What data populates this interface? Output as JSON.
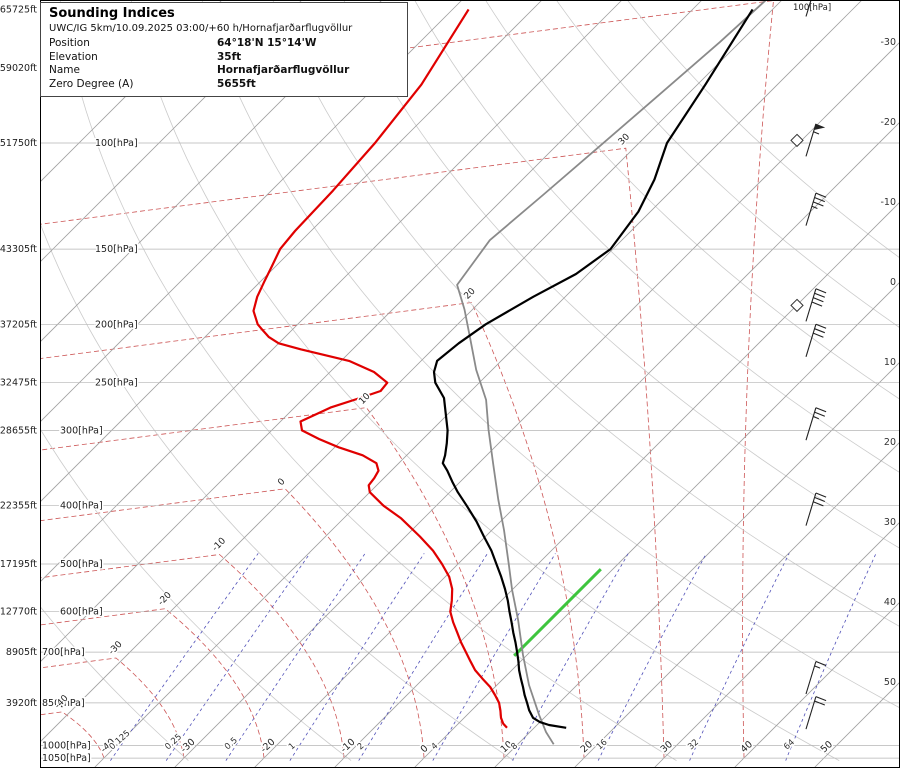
{
  "header": {
    "title": "Sounding Indices",
    "subtitle": "UWC/IG 5km/10.09.2025 03:00/+60 h/Hornafjarðarflugvöllur",
    "rows": [
      {
        "label": "Position",
        "value": "64°18'N 15°14'W"
      },
      {
        "label": "Elevation",
        "value": "35ft"
      },
      {
        "label": "Name",
        "value": "Hornafjarðarflugvöllur"
      },
      {
        "label": "Zero Degree (A)",
        "value": "5655ft"
      }
    ]
  },
  "axes": {
    "top_right_label": "100[hPa]",
    "pressure_labels": [
      {
        "p": 100,
        "x": 95,
        "text": "100[hPa]"
      },
      {
        "p": 150,
        "x": 95,
        "text": "150[hPa]"
      },
      {
        "p": 200,
        "x": 95,
        "text": "200[hPa]"
      },
      {
        "p": 250,
        "x": 95,
        "text": "250[hPa]"
      },
      {
        "p": 300,
        "x": 60,
        "text": "300[hPa]"
      },
      {
        "p": 400,
        "x": 60,
        "text": "400[hPa]"
      },
      {
        "p": 500,
        "x": 60,
        "text": "500[hPa]"
      },
      {
        "p": 600,
        "x": 60,
        "text": "600[hPa]"
      },
      {
        "p": 700,
        "x": 42,
        "text": "700[hPa]"
      },
      {
        "p": 850,
        "x": 42,
        "text": "850[hPa]"
      },
      {
        "p": 1000,
        "x": 42,
        "text": "1000[hPa]"
      },
      {
        "p": 1050,
        "x": 42,
        "text": "1050[hPa]"
      }
    ],
    "altitude_labels": [
      {
        "p": 60,
        "text": "65725ft"
      },
      {
        "p": 75,
        "text": "59020ft"
      },
      {
        "p": 100,
        "text": "51750ft"
      },
      {
        "p": 150,
        "text": "43305ft"
      },
      {
        "p": 200,
        "text": "37205ft"
      },
      {
        "p": 250,
        "text": "32475ft"
      },
      {
        "p": 300,
        "text": "28655ft"
      },
      {
        "p": 400,
        "text": "22355ft"
      },
      {
        "p": 500,
        "text": "17195ft"
      },
      {
        "p": 600,
        "text": "12770ft"
      },
      {
        "p": 700,
        "text": "8905ft"
      },
      {
        "p": 850,
        "text": "3920ft"
      }
    ],
    "right_temp_labels": [
      -30,
      -20,
      -10,
      0,
      10,
      20,
      30,
      40,
      50
    ],
    "bottom_temp_labels": [
      -40,
      -30,
      -20,
      -10,
      0,
      10,
      20,
      30,
      40,
      50
    ],
    "mixing_ratio_labels": [
      0.125,
      0.25,
      0.5,
      1,
      2,
      4,
      8,
      16,
      32,
      64
    ]
  },
  "chart_data": {
    "type": "line",
    "subtype": "skew-t log-p sounding",
    "pressure_range_hpa": [
      1050,
      58
    ],
    "isobars_hpa": [
      100,
      150,
      200,
      250,
      300,
      400,
      500,
      600,
      700,
      850,
      1000,
      1050
    ],
    "isotherm_step_c": 10,
    "temperature_profile": [
      [
        60,
        -52.5
      ],
      [
        80,
        -49
      ],
      [
        100,
        -46.5
      ],
      [
        115,
        -43.5
      ],
      [
        130,
        -41.5
      ],
      [
        150,
        -40.3
      ],
      [
        165,
        -41.5
      ],
      [
        180,
        -44
      ],
      [
        200,
        -46.5
      ],
      [
        215,
        -47.5
      ],
      [
        230,
        -48
      ],
      [
        240,
        -47
      ],
      [
        250,
        -45.5
      ],
      [
        265,
        -42.5
      ],
      [
        280,
        -40.5
      ],
      [
        300,
        -38
      ],
      [
        315,
        -36.5
      ],
      [
        330,
        -35.2
      ],
      [
        340,
        -34.5
      ],
      [
        350,
        -33
      ],
      [
        365,
        -31
      ],
      [
        380,
        -29
      ],
      [
        400,
        -26.2
      ],
      [
        425,
        -23
      ],
      [
        450,
        -20.2
      ],
      [
        475,
        -17.5
      ],
      [
        500,
        -15.2
      ],
      [
        525,
        -13
      ],
      [
        550,
        -11
      ],
      [
        575,
        -9.2
      ],
      [
        600,
        -7.6
      ],
      [
        625,
        -6
      ],
      [
        650,
        -4.5
      ],
      [
        675,
        -3
      ],
      [
        700,
        -1.6
      ],
      [
        725,
        -0.3
      ],
      [
        750,
        0.9
      ],
      [
        775,
        2.2
      ],
      [
        800,
        3.5
      ],
      [
        825,
        4.7
      ],
      [
        850,
        6
      ],
      [
        875,
        7.2
      ],
      [
        900,
        8.6
      ],
      [
        915,
        10
      ],
      [
        925,
        11.5
      ],
      [
        935,
        14
      ]
    ],
    "dewpoint_profile": [
      [
        60,
        -88
      ],
      [
        80,
        -84.5
      ],
      [
        100,
        -83
      ],
      [
        120,
        -82.3
      ],
      [
        140,
        -82
      ],
      [
        150,
        -81.6
      ],
      [
        160,
        -80.5
      ],
      [
        170,
        -79.5
      ],
      [
        180,
        -78.5
      ],
      [
        190,
        -77.2
      ],
      [
        200,
        -75
      ],
      [
        205,
        -73.5
      ],
      [
        210,
        -72
      ],
      [
        215,
        -70
      ],
      [
        220,
        -66.5
      ],
      [
        230,
        -59
      ],
      [
        240,
        -54.5
      ],
      [
        250,
        -51.5
      ],
      [
        258,
        -51.3
      ],
      [
        265,
        -53
      ],
      [
        275,
        -55.5
      ],
      [
        290,
        -57.5
      ],
      [
        300,
        -56.2
      ],
      [
        310,
        -53
      ],
      [
        320,
        -49.5
      ],
      [
        330,
        -45.5
      ],
      [
        340,
        -42.8
      ],
      [
        350,
        -41.6
      ],
      [
        360,
        -41.2
      ],
      [
        370,
        -41
      ],
      [
        380,
        -40
      ],
      [
        400,
        -36.6
      ],
      [
        420,
        -32.8
      ],
      [
        450,
        -28.2
      ],
      [
        475,
        -24.8
      ],
      [
        500,
        -22
      ],
      [
        525,
        -19.5
      ],
      [
        550,
        -17.6
      ],
      [
        575,
        -16.2
      ],
      [
        600,
        -15
      ],
      [
        625,
        -13.3
      ],
      [
        650,
        -11.5
      ],
      [
        675,
        -9.8
      ],
      [
        700,
        -8
      ],
      [
        725,
        -6.3
      ],
      [
        750,
        -4.6
      ],
      [
        775,
        -2.6
      ],
      [
        800,
        -0.6
      ],
      [
        825,
        1
      ],
      [
        850,
        2.5
      ],
      [
        875,
        3.6
      ],
      [
        900,
        4.6
      ],
      [
        920,
        5.6
      ],
      [
        935,
        6.6
      ]
    ],
    "parcel_profile": [
      [
        58,
        -52
      ],
      [
        68,
        -52.5
      ],
      [
        83,
        -53.5
      ],
      [
        101,
        -54.5
      ],
      [
        122,
        -55.5
      ],
      [
        145,
        -56.5
      ],
      [
        172,
        -55
      ],
      [
        189,
        -51
      ],
      [
        212,
        -46.5
      ],
      [
        238,
        -42
      ],
      [
        267,
        -37
      ],
      [
        299,
        -33
      ],
      [
        342,
        -28
      ],
      [
        391,
        -23
      ],
      [
        439,
        -18.5
      ],
      [
        502,
        -13.5
      ],
      [
        552,
        -10
      ],
      [
        619,
        -5.5
      ],
      [
        708,
        -0.5
      ],
      [
        794,
        4
      ],
      [
        890,
        9
      ],
      [
        950,
        12
      ],
      [
        996,
        14.5
      ]
    ],
    "zero_deg_segment": {
      "t_c": -1.5,
      "p_from": 710,
      "p_to": 510
    },
    "moist_adiabat_labels": [
      {
        "value": 40,
        "p": 58
      },
      {
        "value": 30,
        "p": 102
      },
      {
        "value": 20,
        "p": 184
      },
      {
        "value": 10,
        "p": 275
      },
      {
        "value": 0,
        "p": 375
      },
      {
        "value": -10,
        "p": 482
      },
      {
        "value": -20,
        "p": 593
      },
      {
        "value": -30,
        "p": 716
      },
      {
        "value": -40,
        "p": 880
      }
    ],
    "wind_barbs": [
      {
        "p": 58,
        "kt": 25
      },
      {
        "p": 99,
        "kt": 55
      },
      {
        "p": 129,
        "kt": 35
      },
      {
        "p": 186,
        "kt": 40
      },
      {
        "p": 213,
        "kt": 30
      },
      {
        "p": 293,
        "kt": 25
      },
      {
        "p": 406,
        "kt": 30
      },
      {
        "p": 773,
        "kt": 15
      },
      {
        "p": 884,
        "kt": 20
      }
    ],
    "level_markers": [
      {
        "p": 99
      },
      {
        "p": 186
      }
    ],
    "colors": {
      "temperature": "#000000",
      "dewpoint": "#e00000",
      "parcel": "#8a8a8a",
      "zero_line": "#3ec53e",
      "isobar": "#b5b5b5",
      "isotherm": "#a0a0a0",
      "dry_adiabat": "#cbcbcb",
      "moist_adiabat": "#cc5555",
      "mixing_ratio": "#5050b8"
    }
  }
}
